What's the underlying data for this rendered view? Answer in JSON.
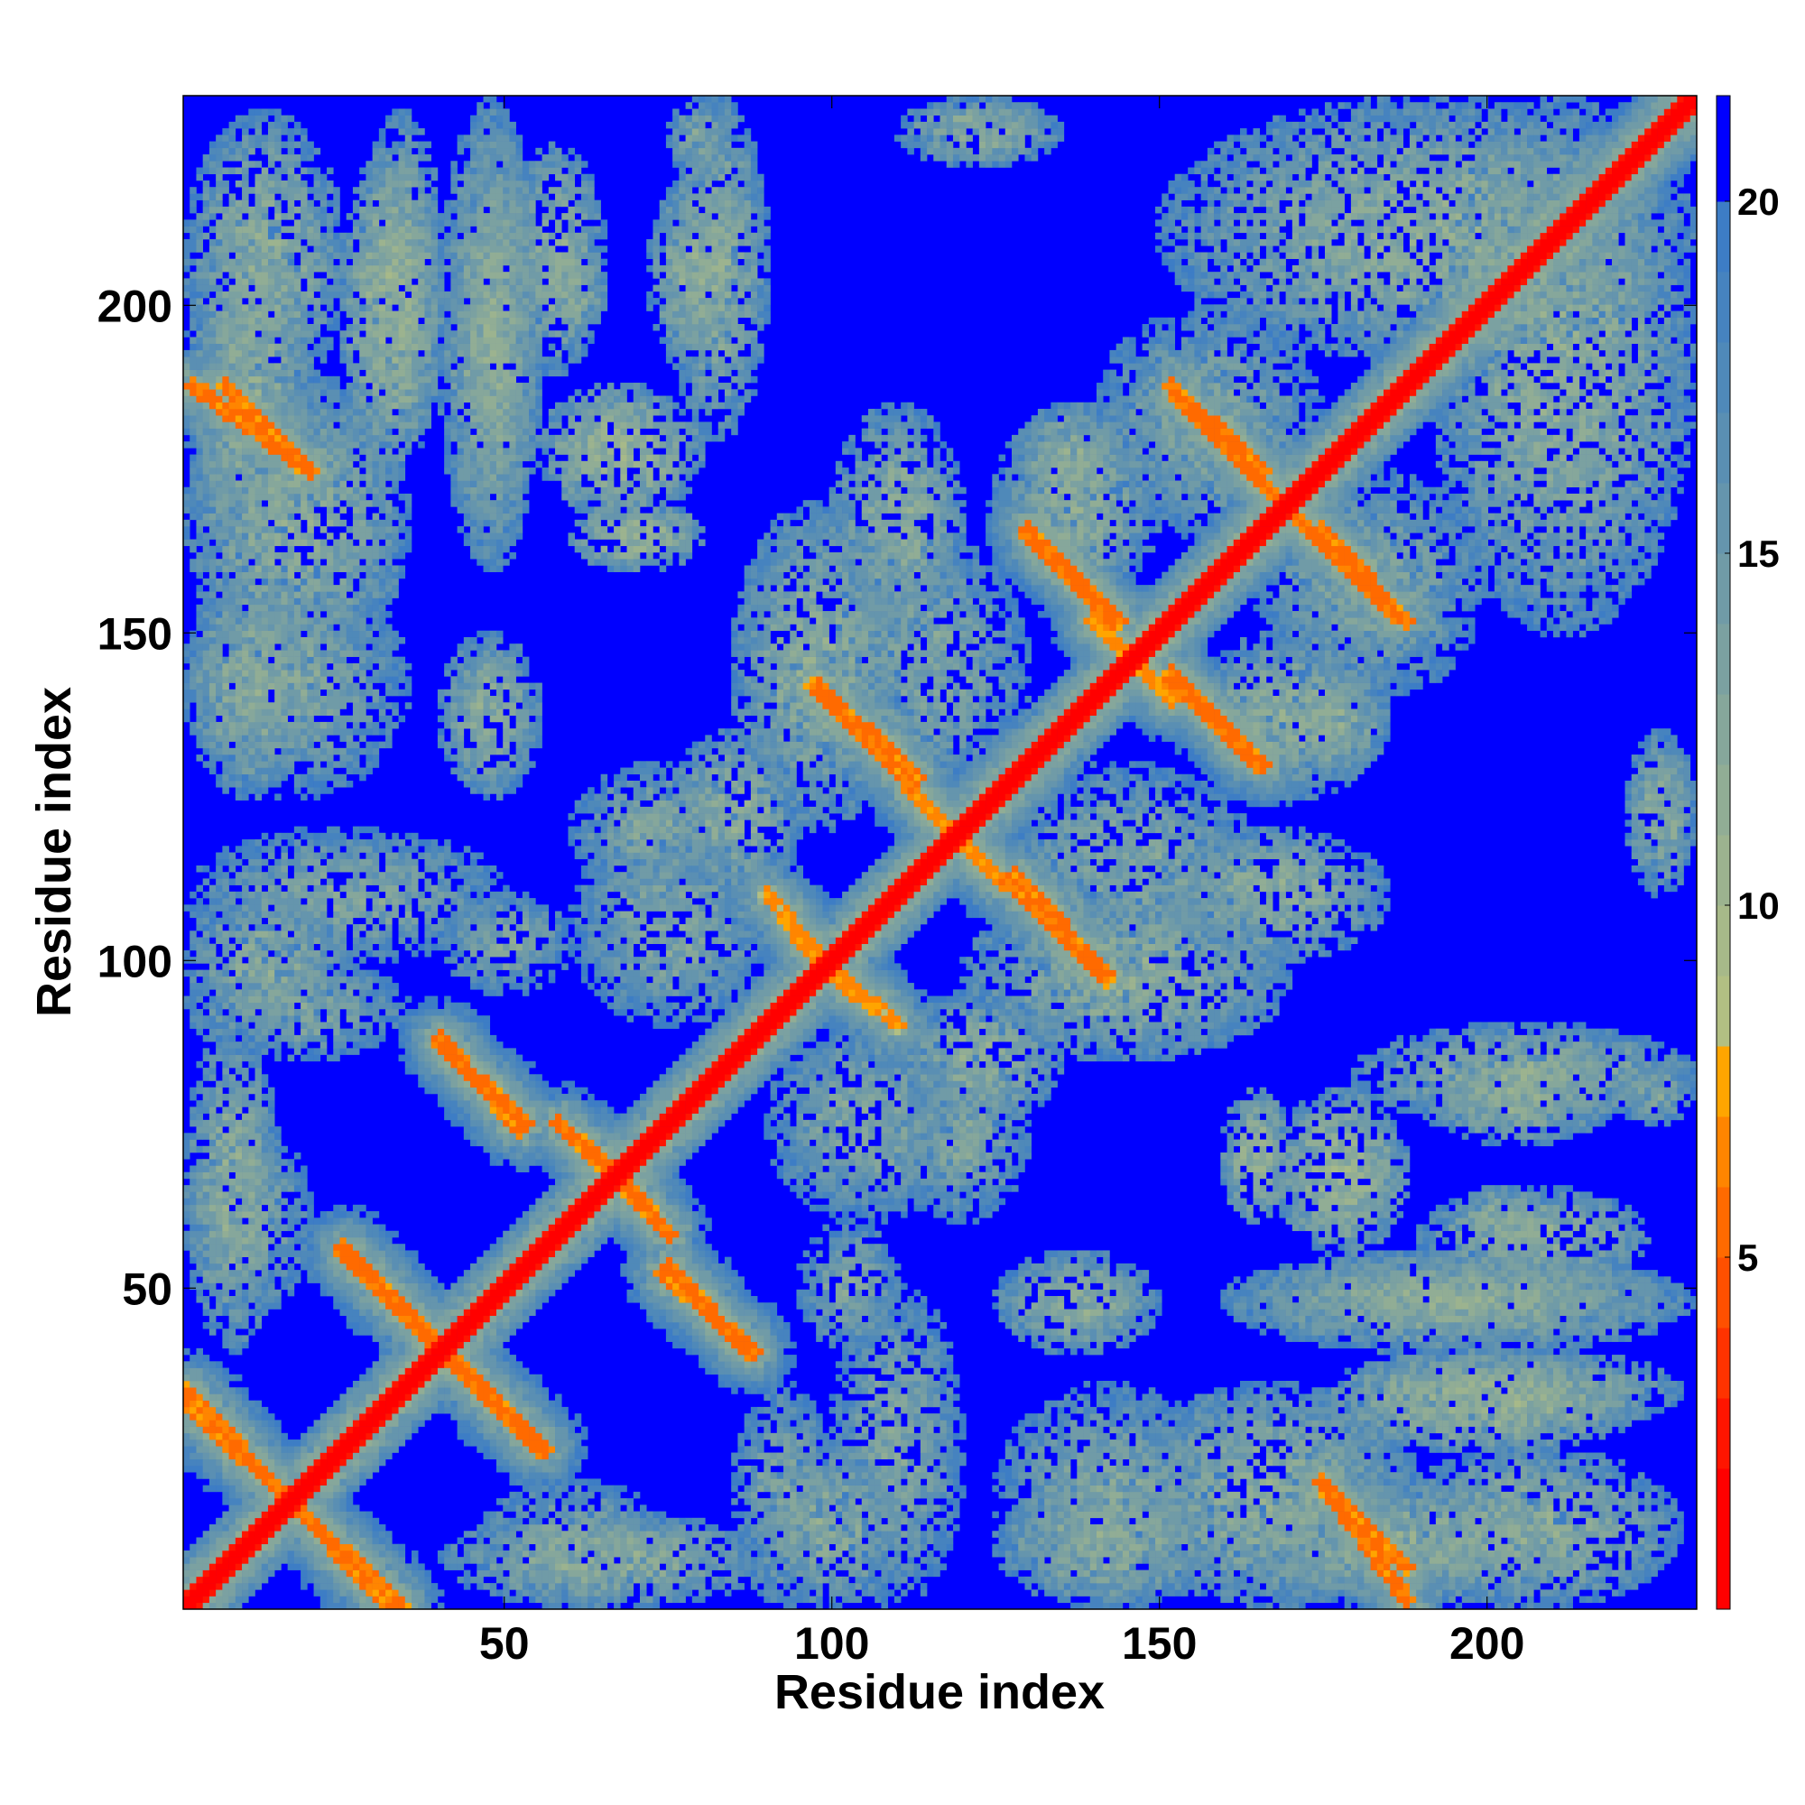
{
  "chart_data": {
    "type": "heatmap",
    "title": "",
    "xlabel": "Residue index",
    "ylabel": "Residue index",
    "n_residues": 232,
    "xlim": [
      1,
      232
    ],
    "ylim": [
      1,
      232
    ],
    "x_ticks": [
      50,
      100,
      150,
      200
    ],
    "y_ticks": [
      50,
      100,
      150,
      200
    ],
    "colorbar": {
      "range": [
        0,
        21.5
      ],
      "ticks": [
        5,
        10,
        15,
        20
      ],
      "levels": [
        {
          "upto": 2,
          "color": "#ff0000"
        },
        {
          "upto": 3,
          "color": "#ff1500"
        },
        {
          "upto": 4,
          "color": "#ff3300"
        },
        {
          "upto": 5,
          "color": "#ff5000"
        },
        {
          "upto": 6,
          "color": "#ff6a00"
        },
        {
          "upto": 7,
          "color": "#ff8500"
        },
        {
          "upto": 8,
          "color": "#ffa500"
        },
        {
          "upto": 9,
          "color": "#b2bf83"
        },
        {
          "upto": 10,
          "color": "#a7b989"
        },
        {
          "upto": 11,
          "color": "#9cb38f"
        },
        {
          "upto": 12,
          "color": "#91ad95"
        },
        {
          "upto": 13,
          "color": "#86a79b"
        },
        {
          "upto": 14,
          "color": "#7ba1a1"
        },
        {
          "upto": 15,
          "color": "#709ba7"
        },
        {
          "upto": 16,
          "color": "#6595ad"
        },
        {
          "upto": 17,
          "color": "#5a8fb3"
        },
        {
          "upto": 18,
          "color": "#4f89b9"
        },
        {
          "upto": 19,
          "color": "#4683bf"
        },
        {
          "upto": 20,
          "color": "#3d7dc5"
        },
        {
          "upto": 21.5,
          "color": "#0000ff"
        }
      ]
    },
    "background_value": 21.5,
    "diagonal_band": {
      "value": 1,
      "halfwidth": 2
    },
    "antidiagonal_strands": [
      {
        "a1": 1,
        "a2": 34,
        "b1": 32,
        "b2": 1,
        "value": 5
      },
      {
        "a1": 2,
        "a2": 20,
        "b1": 188,
        "b2": 175,
        "value": 5
      },
      {
        "a1": 25,
        "a2": 56,
        "b1": 55,
        "b2": 25,
        "value": 5
      },
      {
        "a1": 40,
        "a2": 53,
        "b1": 87,
        "b2": 75,
        "value": 5
      },
      {
        "a1": 58,
        "a2": 72,
        "b1": 75,
        "b2": 62,
        "value": 5
      },
      {
        "a1": 74,
        "a2": 88,
        "b1": 52,
        "b2": 40,
        "value": 5
      },
      {
        "a1": 95,
        "a2": 110,
        "b1": 103,
        "b2": 90,
        "value": 6
      },
      {
        "a1": 98,
        "a2": 113,
        "b1": 142,
        "b2": 128,
        "value": 5
      },
      {
        "a1": 112,
        "a2": 126,
        "b1": 126,
        "b2": 112,
        "value": 6
      },
      {
        "a1": 127,
        "a2": 142,
        "b1": 112,
        "b2": 97,
        "value": 5
      },
      {
        "a1": 130,
        "a2": 143,
        "b1": 165,
        "b2": 152,
        "value": 5
      },
      {
        "a1": 140,
        "a2": 152,
        "b1": 152,
        "b2": 140,
        "value": 6
      },
      {
        "a1": 152,
        "a2": 166,
        "b1": 144,
        "b2": 130,
        "value": 5
      },
      {
        "a1": 153,
        "a2": 169,
        "b1": 186,
        "b2": 170,
        "value": 5
      },
      {
        "a1": 163,
        "a2": 176,
        "b1": 176,
        "b2": 163,
        "value": 6
      },
      {
        "a1": 175,
        "a2": 188,
        "b1": 166,
        "b2": 152,
        "value": 5
      },
      {
        "a1": 175,
        "a2": 188,
        "b1": 20,
        "b2": 7,
        "value": 5
      },
      {
        "a1": 190,
        "a2": 232,
        "b1": 190,
        "b2": 232,
        "value": 6
      }
    ],
    "contact_regions": [
      {
        "x": [
          1,
          20
        ],
        "y": [
          160,
          215
        ],
        "value": 12
      },
      {
        "x": [
          28,
          40
        ],
        "y": [
          180,
          230
        ],
        "value": 12
      },
      {
        "x": [
          42,
          55
        ],
        "y": [
          160,
          230
        ],
        "value": 12
      },
      {
        "x": [
          58,
          65
        ],
        "y": [
          195,
          210
        ],
        "value": 12
      },
      {
        "x": [
          72,
          85
        ],
        "y": [
          190,
          220
        ],
        "value": 12
      },
      {
        "x": [
          75,
          85
        ],
        "y": [
          220,
          232
        ],
        "value": 13
      },
      {
        "x": [
          112,
          135
        ],
        "y": [
          222,
          232
        ],
        "value": 14
      },
      {
        "x": [
          60,
          80
        ],
        "y": [
          160,
          170
        ],
        "value": 11
      },
      {
        "x": [
          85,
          110
        ],
        "y": [
          120,
          170
        ],
        "value": 12
      },
      {
        "x": [
          128,
          145
        ],
        "y": [
          170,
          185
        ],
        "value": 12
      },
      {
        "x": [
          1,
          35
        ],
        "y": [
          125,
          160
        ],
        "value": 13
      },
      {
        "x": [
          1,
          25
        ],
        "y": [
          90,
          110
        ],
        "value": 12
      },
      {
        "x": [
          40,
          60
        ],
        "y": [
          95,
          110
        ],
        "value": 13
      },
      {
        "x": [
          60,
          90
        ],
        "y": [
          90,
          120
        ],
        "value": 13
      },
      {
        "x": [
          75,
          95
        ],
        "y": [
          110,
          135
        ],
        "value": 12
      },
      {
        "x": [
          110,
          130
        ],
        "y": [
          60,
          85
        ],
        "value": 13
      },
      {
        "x": [
          150,
          185
        ],
        "y": [
          100,
          120
        ],
        "value": 12
      },
      {
        "x": [
          168,
          188
        ],
        "y": [
          55,
          80
        ],
        "value": 11
      },
      {
        "x": [
          180,
          232
        ],
        "y": [
          75,
          90
        ],
        "value": 12
      },
      {
        "x": [
          190,
          225
        ],
        "y": [
          50,
          65
        ],
        "value": 12
      },
      {
        "x": [
          160,
          232
        ],
        "y": [
          40,
          55
        ],
        "value": 12
      },
      {
        "x": [
          175,
          225
        ],
        "y": [
          25,
          40
        ],
        "value": 11
      },
      {
        "x": [
          100,
          120
        ],
        "y": [
          1,
          50
        ],
        "value": 13
      },
      {
        "x": [
          85,
          100
        ],
        "y": [
          1,
          35
        ],
        "value": 13
      },
      {
        "x": [
          45,
          75
        ],
        "y": [
          1,
          20
        ],
        "value": 13
      },
      {
        "x": [
          125,
          150
        ],
        "y": [
          40,
          55
        ],
        "value": 12
      },
      {
        "x": [
          125,
          160
        ],
        "y": [
          1,
          20
        ],
        "value": 12
      },
      {
        "x": [
          145,
          190
        ],
        "y": [
          1,
          35
        ],
        "value": 12
      },
      {
        "x": [
          185,
          230
        ],
        "y": [
          1,
          25
        ],
        "value": 12
      },
      {
        "x": [
          192,
          232
        ],
        "y": [
          150,
          232
        ],
        "value": 12
      },
      {
        "x": [
          222,
          232
        ],
        "y": [
          110,
          135
        ],
        "value": 12
      },
      {
        "x": [
          100,
          130
        ],
        "y": [
          125,
          165
        ],
        "value": 13
      },
      {
        "x": [
          155,
          185
        ],
        "y": [
          125,
          150
        ],
        "value": 12
      },
      {
        "x": [
          165,
          200
        ],
        "y": [
          140,
          175
        ],
        "value": 13
      },
      {
        "x": [
          1,
          15
        ],
        "y": [
          40,
          90
        ],
        "value": 12
      }
    ]
  }
}
